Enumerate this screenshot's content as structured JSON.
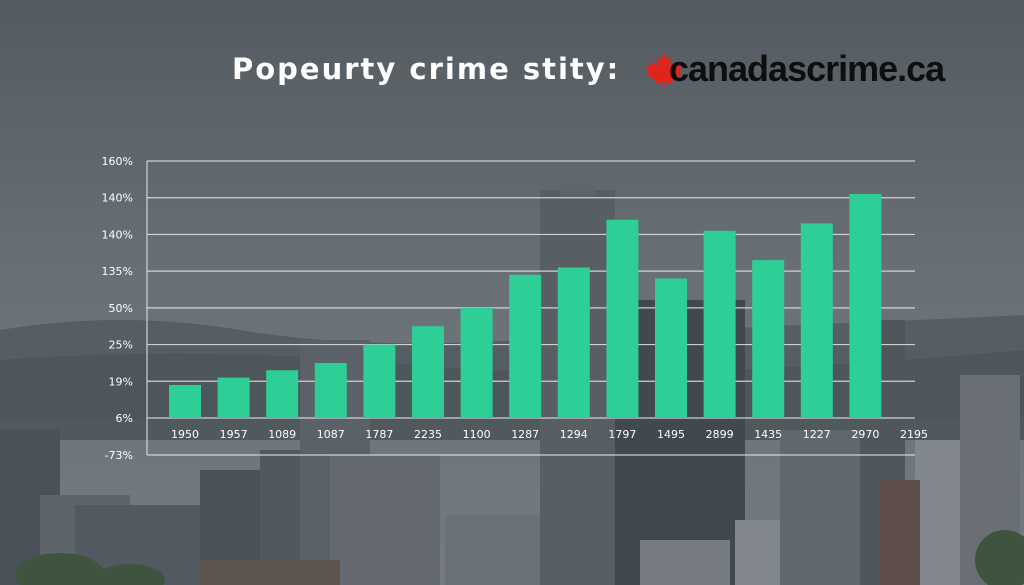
{
  "header": {
    "title": "Popeurty crime stity:",
    "brand": "canadascrime.ca",
    "brand_icon": "maple-leaf-icon"
  },
  "colors": {
    "bar": "#2ecf96",
    "grid": "#e4e6e8",
    "maple": "#e0231b",
    "text": "#ffffff"
  },
  "chart_data": {
    "type": "bar",
    "title": "Popeurty crime stity:",
    "y_tick_labels": [
      "160%",
      "140%",
      "140%",
      "135%",
      "50%",
      "25%",
      "19%",
      "6%",
      "-73%"
    ],
    "categories": [
      "1950",
      "1957",
      "1089",
      "1087",
      "1787",
      "2235",
      "1100",
      "1287",
      "1294",
      "1797",
      "1495",
      "2899",
      "1435",
      "1227",
      "2970",
      "2195"
    ],
    "values": [
      0.9,
      1.1,
      1.3,
      1.5,
      2.0,
      2.5,
      3.0,
      3.9,
      4.1,
      5.4,
      3.8,
      5.1,
      4.3,
      5.3,
      6.1,
      null
    ],
    "y_scale": "tick positions (0 = \"6%\", 7 = \"160%\")",
    "ylim": [
      -1,
      7
    ],
    "grid": true,
    "legend": "none"
  }
}
